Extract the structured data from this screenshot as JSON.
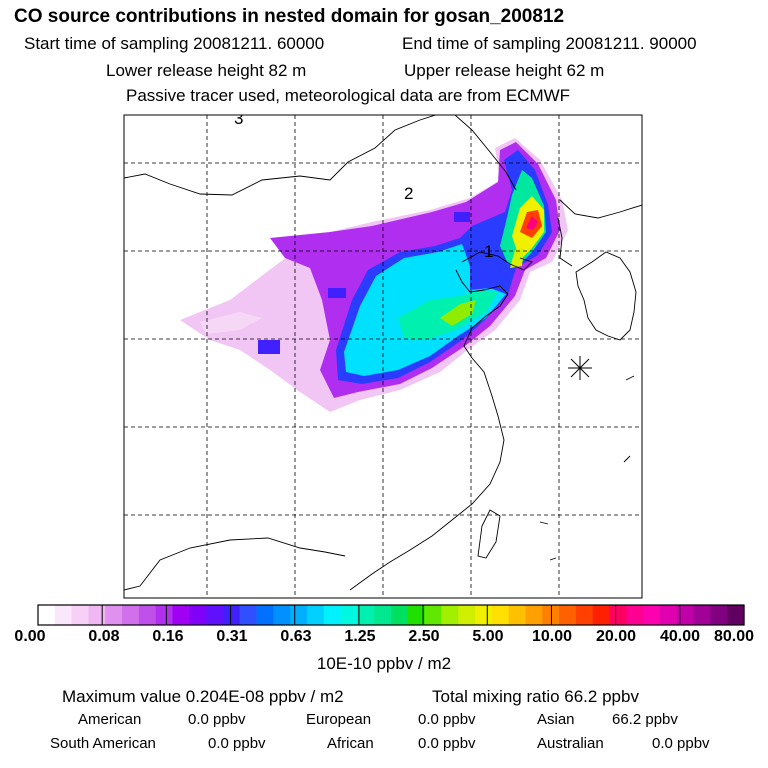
{
  "header": {
    "title": "CO  source contributions in nested domain for gosan_200812",
    "start_time": "Start time of sampling 20081211. 60000",
    "end_time": "End time of sampling 20081211. 90000",
    "lower_release": "Lower release height   82 m",
    "upper_release": "Upper release height   62 m",
    "tracer_note": "Passive tracer used, meteorological data are from ECMWF"
  },
  "map": {
    "labels": [
      "3",
      "2",
      "1"
    ],
    "station_marker": "asterisk-icon"
  },
  "colorbar": {
    "ticks": [
      "0.00",
      "0.08",
      "0.16",
      "0.31",
      "0.63",
      "1.25",
      "2.50",
      "5.00",
      "10.00",
      "20.00",
      "40.00",
      "80.00"
    ],
    "colors": [
      "#ffffff",
      "#fbe7fb",
      "#f6d0f6",
      "#f0b8f2",
      "#e090ee",
      "#d070ea",
      "#c050ea",
      "#b030ee",
      "#a000f4",
      "#8000f8",
      "#6010fc",
      "#4020ff",
      "#3050ff",
      "#0070ff",
      "#0090ff",
      "#00b0ff",
      "#00d0ff",
      "#00f0ff",
      "#00f8e0",
      "#00f0b0",
      "#00e890",
      "#00e060",
      "#20e000",
      "#60e800",
      "#a0f000",
      "#d0f000",
      "#f0f000",
      "#ffe000",
      "#ffc000",
      "#ffa000",
      "#ff8000",
      "#ff6000",
      "#ff4000",
      "#ff2000",
      "#ff0060",
      "#ff0090",
      "#ff00b0",
      "#e000b0",
      "#c000a8",
      "#a00098",
      "#800080",
      "#600060"
    ],
    "units": "10E-10 ppbv / m2"
  },
  "stats": {
    "maximum": "Maximum value  0.204E-08 ppbv / m2",
    "total": "Total mixing ratio       66.2 ppbv"
  },
  "regions": [
    {
      "name": "American",
      "value": "0.0 ppbv"
    },
    {
      "name": "European",
      "value": "0.0 ppbv"
    },
    {
      "name": "Asian",
      "value": "66.2 ppbv"
    },
    {
      "name": "South American",
      "value": "0.0 ppbv"
    },
    {
      "name": "African",
      "value": "0.0 ppbv"
    },
    {
      "name": "Australian",
      "value": "0.0 ppbv"
    }
  ]
}
